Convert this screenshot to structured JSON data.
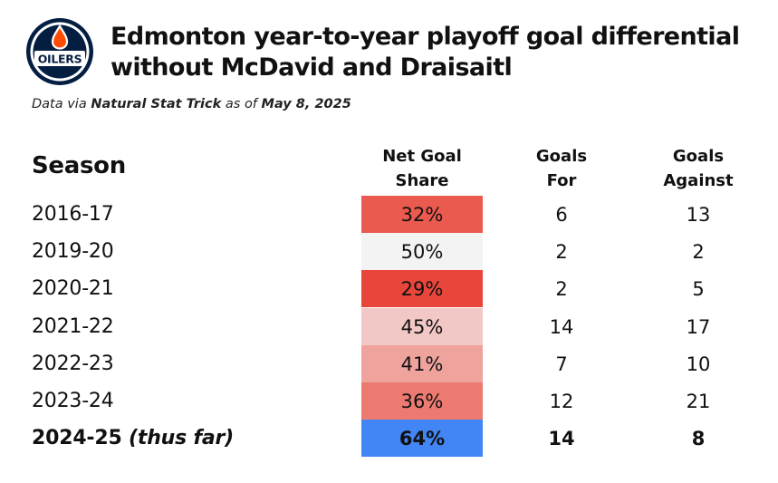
{
  "logo": {
    "text": "OILERS",
    "colors": {
      "navy": "#041e42",
      "orange": "#fc4c02",
      "white": "#ffffff"
    }
  },
  "title": {
    "line1": "Edmonton year-to-year playoff goal differential",
    "line2": "without McDavid and Draisaitl"
  },
  "subtitle": {
    "prefix": "Data via ",
    "source": "Natural Stat Trick",
    "middle": " as of ",
    "date": "May 8, 2025"
  },
  "headers": {
    "season": "Season",
    "share_line1": "Net Goal",
    "share_line2": "Share",
    "gf_line1": "Goals",
    "gf_line2": "For",
    "ga_line1": "Goals",
    "ga_line2": "Against"
  },
  "colors": {
    "share_scale_low": "#e8463a",
    "share_scale_mid": "#f3f3f3",
    "highlight": "#4285f4"
  },
  "chart_data": {
    "type": "table",
    "title": "Edmonton year-to-year playoff goal differential without McDavid and Draisaitl",
    "columns": [
      "Season",
      "Net Goal Share",
      "Goals For",
      "Goals Against"
    ],
    "rows": [
      {
        "season": "2016-17",
        "suffix": "",
        "share": "32%",
        "share_value": 32,
        "gf": "6",
        "ga": "13",
        "color": "#eb5a4e",
        "bold": false
      },
      {
        "season": "2019-20",
        "suffix": "",
        "share": "50%",
        "share_value": 50,
        "gf": "2",
        "ga": "2",
        "color": "#f3f3f3",
        "bold": false
      },
      {
        "season": "2020-21",
        "suffix": "",
        "share": "29%",
        "share_value": 29,
        "gf": "2",
        "ga": "5",
        "color": "#e8463a",
        "bold": false
      },
      {
        "season": "2021-22",
        "suffix": "",
        "share": "45%",
        "share_value": 45,
        "gf": "14",
        "ga": "17",
        "color": "#f1c8c6",
        "bold": false
      },
      {
        "season": "2022-23",
        "suffix": "",
        "share": "41%",
        "share_value": 41,
        "gf": "7",
        "ga": "10",
        "color": "#eea39d",
        "bold": false
      },
      {
        "season": "2023-24",
        "suffix": "",
        "share": "36%",
        "share_value": 36,
        "gf": "12",
        "ga": "21",
        "color": "#ec7a71",
        "bold": false
      },
      {
        "season": "2024-25 ",
        "suffix": "(thus far)",
        "share": "64%",
        "share_value": 64,
        "gf": "14",
        "ga": "8",
        "color": "#4285f4",
        "bold": true
      }
    ]
  }
}
